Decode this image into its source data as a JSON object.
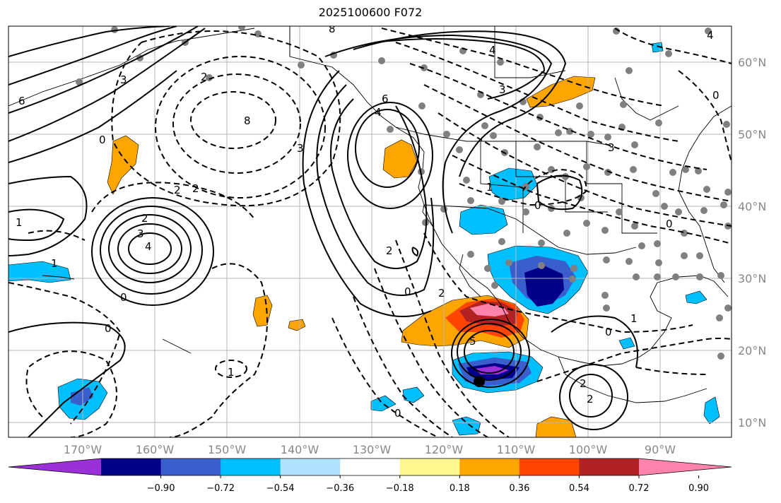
{
  "title": "2025100600 F072",
  "lat_labels": [
    "60°N",
    "50°N",
    "40°N",
    "30°N",
    "20°N",
    "10°N"
  ],
  "lon_labels": [
    "170°W",
    "160°W",
    "150°W",
    "140°W",
    "130°W",
    "120°W",
    "110°W",
    "100°W",
    "90°W"
  ],
  "colorbar": {
    "colors": [
      "#9b30d9",
      "#00008b",
      "#3a5fcd",
      "#00bfff",
      "#b0e2ff",
      "#ffffff",
      "#fff68f",
      "#ffa500",
      "#ff4500",
      "#b22222",
      "#ff83aa"
    ],
    "tick_labels": [
      "−0.90",
      "−0.72",
      "−0.54",
      "−0.36",
      "−0.18",
      "0.18",
      "0.36",
      "0.54",
      "0.72",
      "0.90"
    ]
  },
  "contour_labels": [
    "8",
    "4",
    "6",
    "3",
    "2",
    "0",
    "8",
    "3",
    "2",
    "2",
    "4",
    "3",
    "2",
    "1",
    "0",
    "1",
    "0",
    "6",
    "4",
    "3",
    "2",
    "0",
    "2",
    "4",
    "3",
    "0",
    "1",
    "0",
    "1",
    "2",
    "2",
    "0",
    "0",
    "5",
    "1",
    "0"
  ]
}
